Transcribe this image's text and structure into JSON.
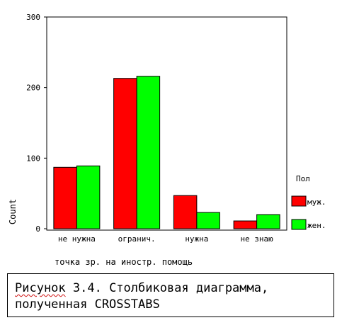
{
  "chart_data": {
    "type": "bar",
    "categories": [
      "не нужна",
      "огранич.",
      "нужна",
      "не знаю"
    ],
    "series": [
      {
        "name": "муж.",
        "color": "#ff0000",
        "values": [
          87,
          213,
          47,
          11
        ]
      },
      {
        "name": "жен.",
        "color": "#00ff00",
        "values": [
          89,
          216,
          23,
          20
        ]
      }
    ],
    "ylim": [
      0,
      300
    ],
    "yticks": [
      0,
      100,
      200,
      300
    ],
    "xlabel": "точка зр. на иностр. помощь",
    "ylabel": "Count",
    "legend_title": "Пол",
    "legend_position": "right",
    "grid": false
  },
  "caption": {
    "word1": "Рисунок",
    "rest1": " 3.4. Столбиковая диаграмма,",
    "line2": "полученная CROSSTABS"
  }
}
